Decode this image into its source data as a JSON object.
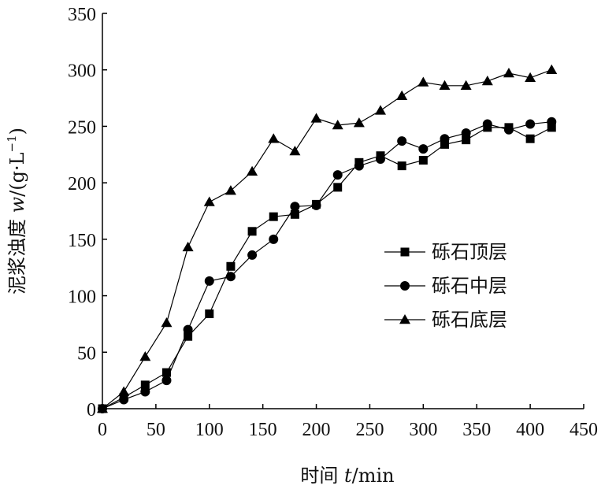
{
  "chart_data": {
    "type": "line",
    "xlabel_prefix": "时间 ",
    "xlabel_var": "t",
    "xlabel_unit": "/min",
    "ylabel_prefix": "泥浆浊度 ",
    "ylabel_var": "w",
    "ylabel_unit": "/(g·L",
    "ylabel_exp": "−1",
    "ylabel_close": ")",
    "xlim": [
      0,
      450
    ],
    "ylim": [
      0,
      350
    ],
    "xticks": [
      0,
      50,
      100,
      150,
      200,
      250,
      300,
      350,
      400,
      450
    ],
    "yticks": [
      0,
      50,
      100,
      150,
      200,
      250,
      300,
      350
    ],
    "legend_position": "right-center",
    "grid": false,
    "series": [
      {
        "name": "砾石顶层",
        "marker": "square",
        "x": [
          0,
          20,
          40,
          60,
          80,
          100,
          120,
          140,
          160,
          180,
          200,
          220,
          240,
          260,
          280,
          300,
          320,
          340,
          360,
          380,
          400,
          420
        ],
        "y": [
          0,
          10,
          21,
          32,
          64,
          84,
          126,
          157,
          170,
          172,
          181,
          196,
          218,
          224,
          215,
          220,
          234,
          238,
          249,
          249,
          239,
          249
        ]
      },
      {
        "name": "砾石中层",
        "marker": "circle",
        "x": [
          0,
          20,
          40,
          60,
          80,
          100,
          120,
          140,
          160,
          180,
          200,
          220,
          240,
          260,
          280,
          300,
          320,
          340,
          360,
          380,
          400,
          420
        ],
        "y": [
          0,
          8,
          15,
          25,
          70,
          113,
          117,
          136,
          150,
          179,
          180,
          207,
          215,
          221,
          237,
          230,
          239,
          244,
          252,
          247,
          252,
          254
        ]
      },
      {
        "name": "砾石底层",
        "marker": "triangle",
        "x": [
          0,
          20,
          40,
          60,
          80,
          100,
          120,
          140,
          160,
          180,
          200,
          220,
          240,
          260,
          280,
          300,
          320,
          340,
          360,
          380,
          400,
          420
        ],
        "y": [
          0,
          15,
          46,
          76,
          143,
          183,
          193,
          210,
          239,
          228,
          257,
          251,
          253,
          264,
          277,
          289,
          286,
          286,
          290,
          297,
          293,
          300
        ]
      }
    ]
  }
}
